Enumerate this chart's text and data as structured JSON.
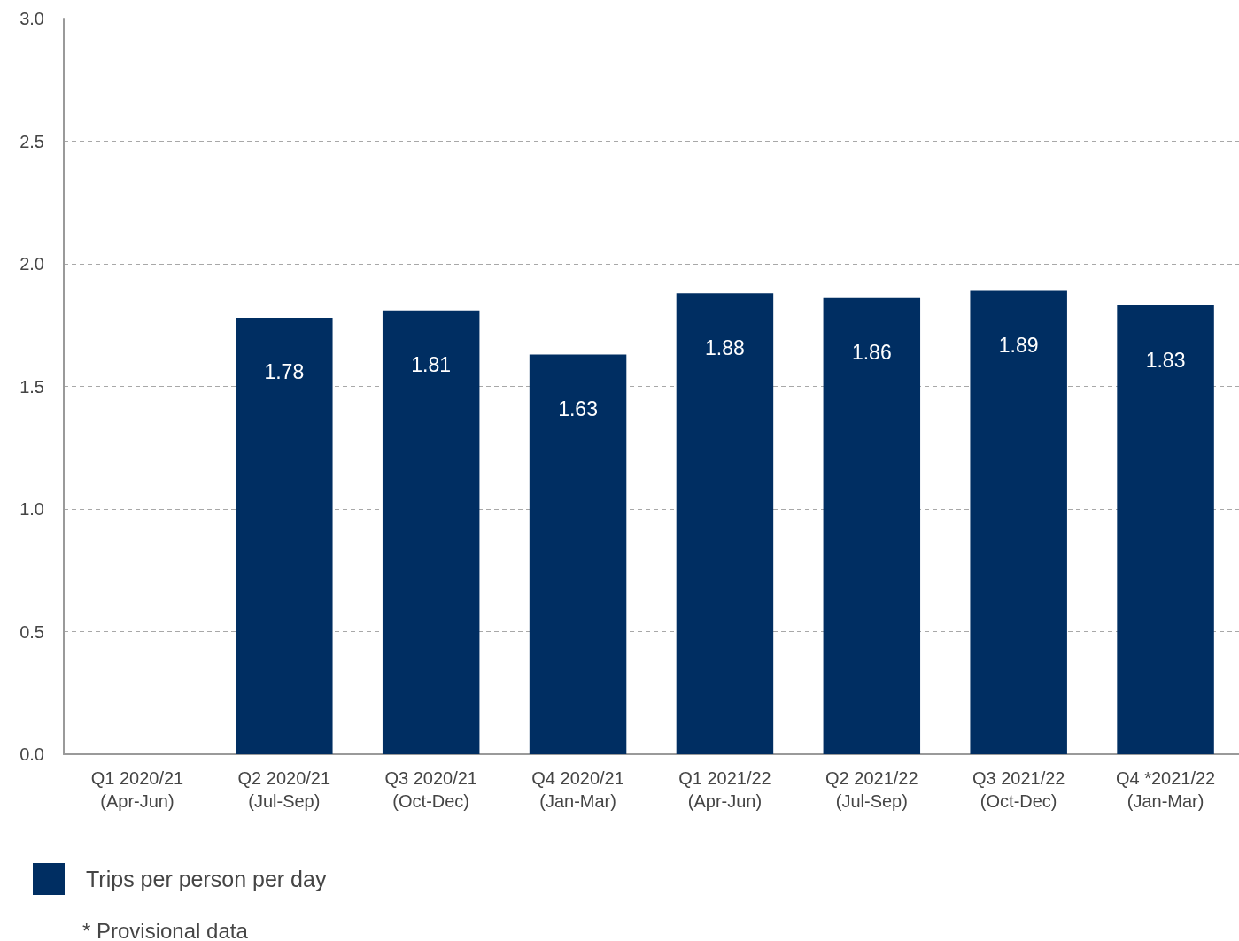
{
  "chart_data": {
    "type": "bar",
    "categories": [
      "Q1 2020/21 (Apr-Jun)",
      "Q2 2020/21 (Jul-Sep)",
      "Q3 2020/21 (Oct-Dec)",
      "Q4 2020/21 (Jan-Mar)",
      "Q1 2021/22 (Apr-Jun)",
      "Q2 2021/22 (Jul-Sep)",
      "Q3 2021/22 (Oct-Dec)",
      "Q4 *2021/22 (Jan-Mar)"
    ],
    "series": [
      {
        "name": "Trips per person per day",
        "color": "#002e62",
        "values": [
          null,
          1.78,
          1.81,
          1.63,
          1.88,
          1.86,
          1.89,
          1.83
        ]
      }
    ],
    "ylim": [
      0,
      3
    ],
    "yticks": [
      {
        "value": 0,
        "label": "0.0"
      },
      {
        "value": 0.5,
        "label": "0.5"
      },
      {
        "value": 1,
        "label": "1.0"
      },
      {
        "value": 1.5,
        "label": "1.5"
      },
      {
        "value": 2,
        "label": "2.0"
      },
      {
        "value": 2.5,
        "label": "2.5"
      },
      {
        "value": 3,
        "label": "3.0"
      }
    ],
    "grid": "y",
    "data_labels": true,
    "legend": "bottom left",
    "annotations": [
      "* Provisional data"
    ]
  }
}
